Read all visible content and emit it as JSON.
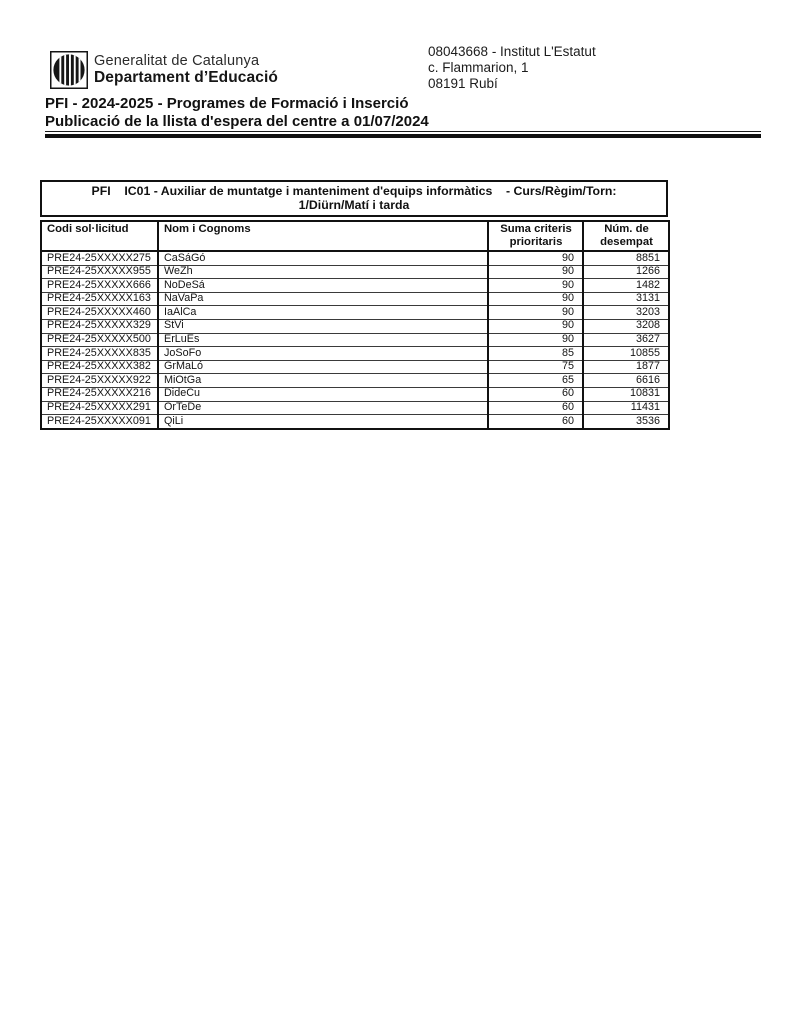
{
  "header": {
    "logo": "generalitat-de-catalunya-senyera-logo",
    "org_line1": "Generalitat de Catalunya",
    "org_line2": "Departament d’Educació"
  },
  "center": {
    "line1": "08043668 - Institut L'Estatut",
    "line2": "c. Flammarion, 1",
    "line3": "08191 Rubí"
  },
  "titles": {
    "line1": "PFI - 2024-2025 - Programes de Formació i Inserció",
    "line2": "Publicació de la llista d'espera del centre a 01/07/2024"
  },
  "table": {
    "title_line1": "PFI    IC01 - Auxiliar de muntatge i manteniment d'equips informàtics    - Curs/Règim/Torn:",
    "title_line2": "1/Diürn/Matí i tarda",
    "columns": [
      "Codi sol·licitud",
      "Nom i Cognoms",
      "Suma criteris prioritaris",
      "Núm. de desempat"
    ],
    "rows": [
      {
        "code": "PRE24-25XXXXX275",
        "name": "CaSáGó",
        "criteria": "90",
        "tiebreak": "8851"
      },
      {
        "code": "PRE24-25XXXXX955",
        "name": "WeZh",
        "criteria": "90",
        "tiebreak": "1266"
      },
      {
        "code": "PRE24-25XXXXX666",
        "name": "NoDeSá",
        "criteria": "90",
        "tiebreak": "1482"
      },
      {
        "code": "PRE24-25XXXXX163",
        "name": "NaVaPa",
        "criteria": "90",
        "tiebreak": "3131"
      },
      {
        "code": "PRE24-25XXXXX460",
        "name": "IaAlCa",
        "criteria": "90",
        "tiebreak": "3203"
      },
      {
        "code": "PRE24-25XXXXX329",
        "name": "StVi",
        "criteria": "90",
        "tiebreak": "3208"
      },
      {
        "code": "PRE24-25XXXXX500",
        "name": "ErLuEs",
        "criteria": "90",
        "tiebreak": "3627"
      },
      {
        "code": "PRE24-25XXXXX835",
        "name": "JoSoFo",
        "criteria": "85",
        "tiebreak": "10855"
      },
      {
        "code": "PRE24-25XXXXX382",
        "name": "GrMaLó",
        "criteria": "75",
        "tiebreak": "1877"
      },
      {
        "code": "PRE24-25XXXXX922",
        "name": "MiOtGa",
        "criteria": "65",
        "tiebreak": "6616"
      },
      {
        "code": "PRE24-25XXXXX216",
        "name": "DideCu",
        "criteria": "60",
        "tiebreak": "10831"
      },
      {
        "code": "PRE24-25XXXXX291",
        "name": "OrTeDe",
        "criteria": "60",
        "tiebreak": "11431"
      },
      {
        "code": "PRE24-25XXXXX091",
        "name": "QiLi",
        "criteria": "60",
        "tiebreak": "3536"
      }
    ]
  }
}
